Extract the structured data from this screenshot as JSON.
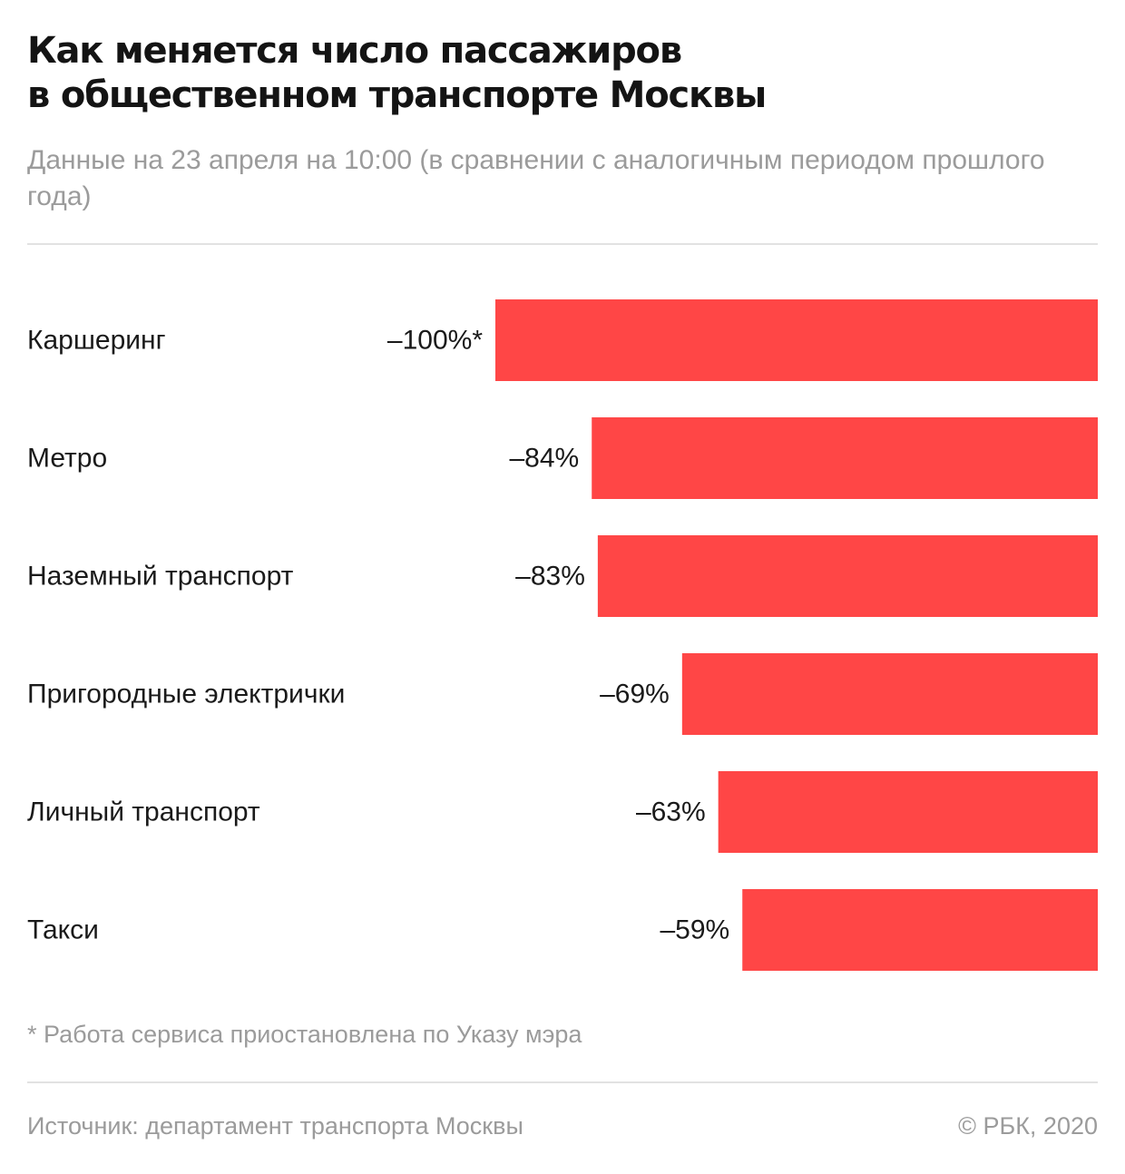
{
  "header": {
    "title_line1": "Как меняется число пассажиров",
    "title_line2": "в общественном транспорте Москвы",
    "subtitle": "Данные на 23 апреля на 10:00 (в сравнении с аналогичным периодом прошлого года)"
  },
  "colors": {
    "bar": "#ff4646"
  },
  "chart_data": {
    "type": "bar",
    "orientation": "horizontal",
    "categories": [
      "Каршеринг",
      "Метро",
      "Наземный транспорт",
      "Пригородные электрички",
      "Личный транспорт",
      "Такси"
    ],
    "values": [
      -100,
      -84,
      -83,
      -69,
      -63,
      -59
    ],
    "value_labels": [
      "–100%*",
      "–84%",
      "–83%",
      "–69%",
      "–63%",
      "–59%"
    ],
    "unit": "%",
    "xlim": [
      -100,
      0
    ],
    "grid": false,
    "legend": "none"
  },
  "footer": {
    "note": "* Работа сервиса приостановлена по Указу мэра",
    "source": "Источник: департамент транспорта Москвы",
    "copyright": "© РБК, 2020"
  }
}
